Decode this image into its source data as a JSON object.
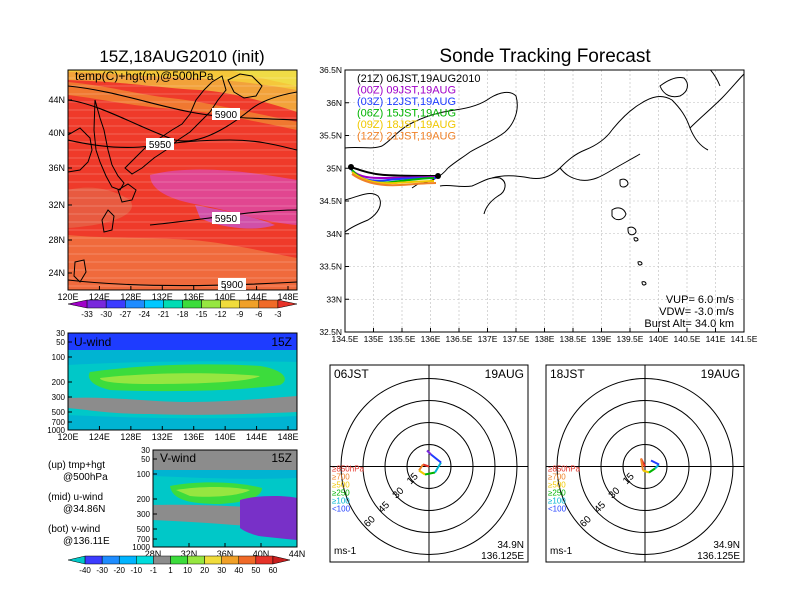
{
  "left_title": "15Z,18AUG2010 (init)",
  "right_title": "Sonde Tracking Forecast",
  "temp_map": {
    "label": "temp(C)+hgt(m)@500hPa",
    "x_ticks": [
      "120E",
      "124E",
      "128E",
      "132E",
      "136E",
      "140E",
      "144E",
      "148E"
    ],
    "y_ticks": [
      "44N",
      "40N",
      "36N",
      "32N",
      "28N",
      "24N"
    ],
    "contour_labels": [
      "5900",
      "5950",
      "5950",
      "5900"
    ],
    "colorbar_labels": [
      "-33",
      "-30",
      "-27",
      "-24",
      "-21",
      "-18",
      "-15",
      "-12",
      "-9",
      "-6",
      "-3"
    ]
  },
  "uwind_panel": {
    "title": "U-wind",
    "time": "15Z",
    "y_ticks": [
      "30",
      "50",
      "100",
      "200",
      "300",
      "500",
      "700",
      "1000"
    ],
    "x_ticks": [
      "120E",
      "124E",
      "128E",
      "132E",
      "136E",
      "140E",
      "144E",
      "148E"
    ]
  },
  "vwind_panel": {
    "title": "V-wind",
    "time": "15Z",
    "y_ticks": [
      "30",
      "50",
      "100",
      "200",
      "300",
      "500",
      "700",
      "1000"
    ],
    "x_ticks": [
      "28N",
      "32N",
      "36N",
      "40N",
      "44N"
    ]
  },
  "notes": [
    {
      "title": "(up) tmp+hgt",
      "sub": "@500hPa"
    },
    {
      "title": "(mid) u-wind",
      "sub": "@34.86N"
    },
    {
      "title": "(bot) v-wind",
      "sub": "@136.11E"
    }
  ],
  "wind_colorbar_labels": [
    "-40",
    "-30",
    "-20",
    "-10",
    "-1",
    "1",
    "10",
    "20",
    "30",
    "40",
    "50",
    "60"
  ],
  "track_map": {
    "legend": [
      {
        "text": "(21Z) 06JST,19AUG2010",
        "color": "#000000"
      },
      {
        "text": "(00Z) 09JST,19AUG",
        "color": "#a000c8"
      },
      {
        "text": "(03Z) 12JST,19AUG",
        "color": "#1e3cff"
      },
      {
        "text": "(06Z) 15JST,19AUG",
        "color": "#00b400"
      },
      {
        "text": "(09Z) 18JST,19AUG",
        "color": "#f0c800"
      },
      {
        "text": "(12Z) 21JST,19AUG",
        "color": "#f08228"
      }
    ],
    "x_ticks": [
      "134.5E",
      "135E",
      "135.5E",
      "136E",
      "136.5E",
      "137E",
      "137.5E",
      "138E",
      "138.5E",
      "139E",
      "139.5E",
      "140E",
      "140.5E",
      "141E",
      "141.5E"
    ],
    "y_ticks": [
      "36.5N",
      "36N",
      "35.5N",
      "35N",
      "34.5N",
      "34N",
      "33.5N",
      "33N",
      "32.5N"
    ],
    "params": [
      "VUP= 6.0 m/s",
      "VDW= -3.0 m/s",
      "Burst Alt= 34.0 km"
    ]
  },
  "hodographs": [
    {
      "time_label": "06JST",
      "date": "19AUG",
      "lat": "34.9N",
      "lon": "136.125E",
      "unit": "ms-1",
      "ring_labels": [
        "15",
        "30",
        "45",
        "60"
      ],
      "legend": [
        "≥850hPa",
        "≥700",
        "≥500",
        "≥250",
        "≥100",
        "<100"
      ]
    },
    {
      "time_label": "18JST",
      "date": "19AUG",
      "lat": "34.9N",
      "lon": "136.125E",
      "unit": "ms-1",
      "ring_labels": [
        "15",
        "30",
        "45",
        "60"
      ],
      "legend": [
        "≥850hPa",
        "≥700",
        "≥500",
        "≥250",
        "≥100",
        "<100"
      ]
    }
  ],
  "colors": {
    "track_black": "#000000",
    "track_purple": "#a000c8",
    "track_blue": "#1e3cff",
    "track_green": "#00b400",
    "track_yellow": "#f0c800",
    "track_orange": "#f08228"
  }
}
